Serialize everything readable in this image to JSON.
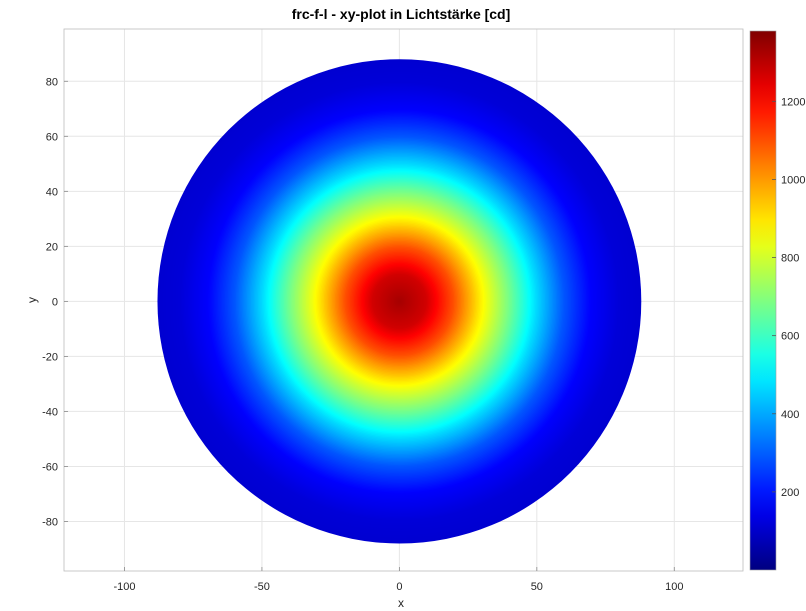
{
  "chart_data": {
    "type": "heatmap",
    "title": "frc-f-l - xy-plot in Lichtstärke [cd]",
    "xlabel": "x",
    "ylabel": "y",
    "xlim": [
      -122,
      125
    ],
    "ylim": [
      -98,
      99
    ],
    "xticks": [
      -100,
      -50,
      0,
      50,
      100
    ],
    "yticks": [
      -80,
      -60,
      -40,
      -20,
      0,
      20,
      40,
      60,
      80
    ],
    "grid": true,
    "disk_radius": 88,
    "center": [
      0,
      0
    ],
    "intensity_profile": {
      "r": [
        0,
        10,
        20,
        30,
        40,
        50,
        60,
        70,
        80,
        88
      ],
      "value": [
        1330,
        1270,
        1100,
        880,
        680,
        470,
        290,
        170,
        120,
        110
      ]
    },
    "colorbar": {
      "range": [
        0,
        1380
      ],
      "ticks": [
        200,
        400,
        600,
        800,
        1000,
        1200
      ],
      "colormap": "jet"
    }
  }
}
